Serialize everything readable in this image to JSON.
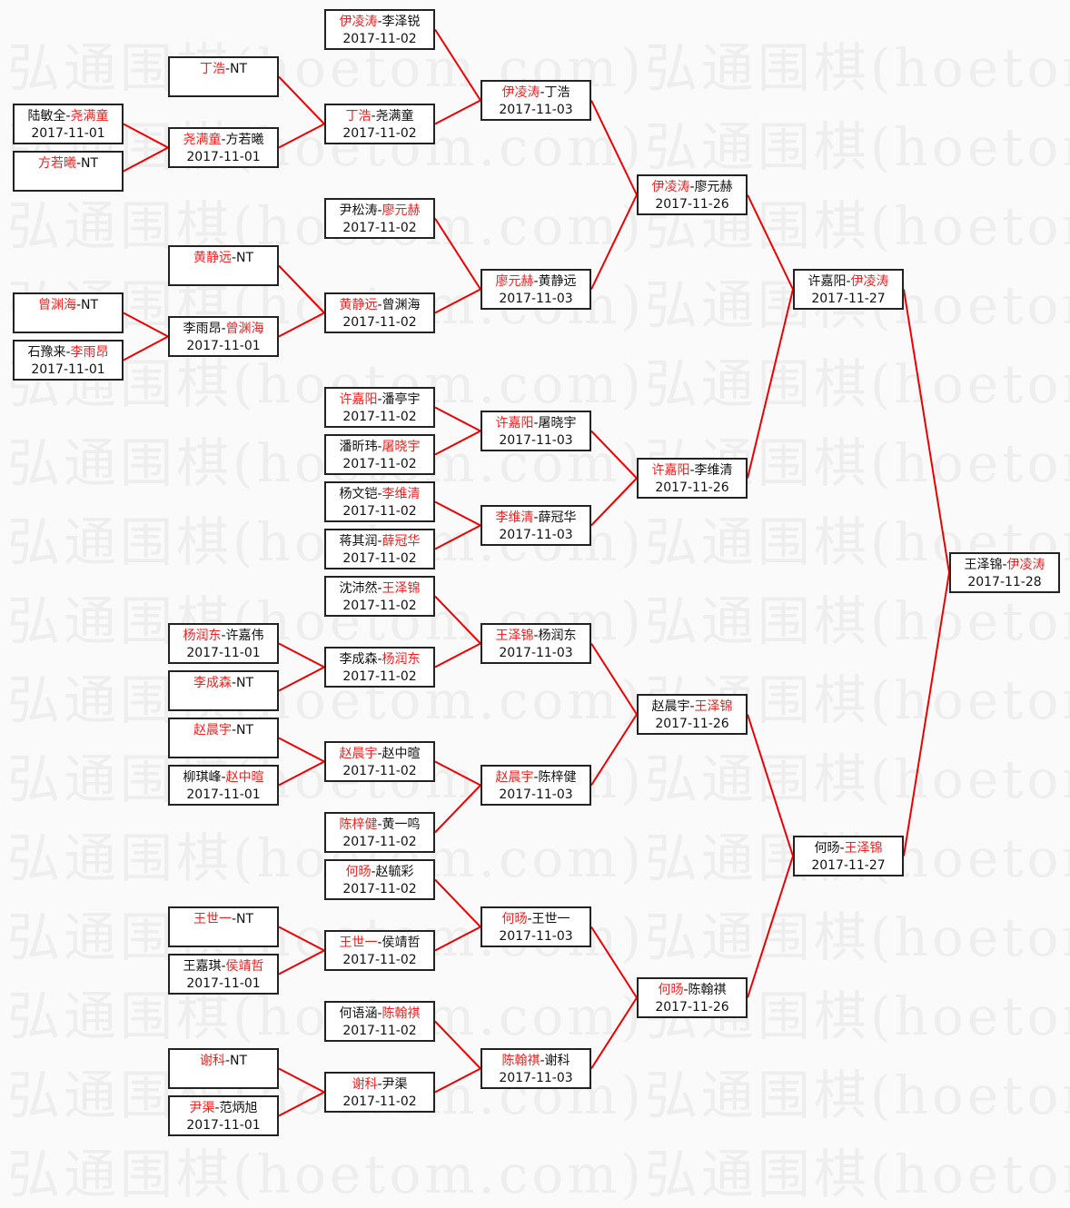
{
  "watermark": "弘通围棋(hoetom.com)",
  "colors": {
    "winner": "#ee2222",
    "line": "#ee0000",
    "border": "#222222"
  },
  "separator": "-",
  "matches": [
    {
      "id": "a1",
      "p1": "陆敏全",
      "p2": "尧满童",
      "winner": 1,
      "date": "2017-11-01"
    },
    {
      "id": "a2",
      "p1": "方若曦",
      "p2": "NT",
      "winner": 0,
      "date": ""
    },
    {
      "id": "a3",
      "p1": "曾渊海",
      "p2": "NT",
      "winner": 0,
      "date": ""
    },
    {
      "id": "a4",
      "p1": "石豫来",
      "p2": "李雨昂",
      "winner": 1,
      "date": "2017-11-01"
    },
    {
      "id": "b1",
      "p1": "丁浩",
      "p2": "NT",
      "winner": 0,
      "date": ""
    },
    {
      "id": "b2",
      "p1": "尧满童",
      "p2": "方若曦",
      "winner": 0,
      "date": "2017-11-01",
      "from": [
        "a1",
        "a2"
      ]
    },
    {
      "id": "b3",
      "p1": "黄静远",
      "p2": "NT",
      "winner": 0,
      "date": ""
    },
    {
      "id": "b4",
      "p1": "李雨昂",
      "p2": "曾渊海",
      "winner": 1,
      "date": "2017-11-01",
      "from": [
        "a3",
        "a4"
      ]
    },
    {
      "id": "b5",
      "p1": "杨润东",
      "p2": "许嘉伟",
      "winner": 0,
      "date": "2017-11-01"
    },
    {
      "id": "b6",
      "p1": "李成森",
      "p2": "NT",
      "winner": 0,
      "date": ""
    },
    {
      "id": "b7",
      "p1": "赵晨宇",
      "p2": "NT",
      "winner": 0,
      "date": ""
    },
    {
      "id": "b8",
      "p1": "柳琪峰",
      "p2": "赵中暄",
      "winner": 1,
      "date": "2017-11-01"
    },
    {
      "id": "b9",
      "p1": "王世一",
      "p2": "NT",
      "winner": 0,
      "date": ""
    },
    {
      "id": "b10",
      "p1": "王嘉琪",
      "p2": "侯靖哲",
      "winner": 1,
      "date": "2017-11-01"
    },
    {
      "id": "b11",
      "p1": "谢科",
      "p2": "NT",
      "winner": 0,
      "date": ""
    },
    {
      "id": "b12",
      "p1": "尹渠",
      "p2": "范炳旭",
      "winner": 0,
      "date": "2017-11-01"
    },
    {
      "id": "c1",
      "p1": "伊凌涛",
      "p2": "李泽锐",
      "winner": 0,
      "date": "2017-11-02"
    },
    {
      "id": "c2",
      "p1": "丁浩",
      "p2": "尧满童",
      "winner": 0,
      "date": "2017-11-02",
      "from": [
        "b1",
        "b2"
      ]
    },
    {
      "id": "c3",
      "p1": "尹松涛",
      "p2": "廖元赫",
      "winner": 1,
      "date": "2017-11-02"
    },
    {
      "id": "c4",
      "p1": "黄静远",
      "p2": "曾渊海",
      "winner": 0,
      "date": "2017-11-02",
      "from": [
        "b3",
        "b4"
      ]
    },
    {
      "id": "c5",
      "p1": "许嘉阳",
      "p2": "潘亭宇",
      "winner": 0,
      "date": "2017-11-02"
    },
    {
      "id": "c6",
      "p1": "潘昕玮",
      "p2": "屠晓宇",
      "winner": 1,
      "date": "2017-11-02"
    },
    {
      "id": "c7",
      "p1": "杨文铠",
      "p2": "李维清",
      "winner": 1,
      "date": "2017-11-02"
    },
    {
      "id": "c8",
      "p1": "蒋其润",
      "p2": "薛冠华",
      "winner": 1,
      "date": "2017-11-02"
    },
    {
      "id": "c9",
      "p1": "沈沛然",
      "p2": "王泽锦",
      "winner": 1,
      "date": "2017-11-02"
    },
    {
      "id": "c10",
      "p1": "李成森",
      "p2": "杨润东",
      "winner": 1,
      "date": "2017-11-02",
      "from": [
        "b5",
        "b6"
      ]
    },
    {
      "id": "c11",
      "p1": "赵晨宇",
      "p2": "赵中暄",
      "winner": 0,
      "date": "2017-11-02",
      "from": [
        "b7",
        "b8"
      ]
    },
    {
      "id": "c12",
      "p1": "陈梓健",
      "p2": "黄一鸣",
      "winner": 0,
      "date": "2017-11-02"
    },
    {
      "id": "c13",
      "p1": "何旸",
      "p2": "赵毓彩",
      "winner": 0,
      "date": "2017-11-02"
    },
    {
      "id": "c14",
      "p1": "王世一",
      "p2": "侯靖哲",
      "winner": 0,
      "date": "2017-11-02",
      "from": [
        "b9",
        "b10"
      ]
    },
    {
      "id": "c15",
      "p1": "何语涵",
      "p2": "陈翰祺",
      "winner": 1,
      "date": "2017-11-02"
    },
    {
      "id": "c16",
      "p1": "谢科",
      "p2": "尹渠",
      "winner": 0,
      "date": "2017-11-02",
      "from": [
        "b11",
        "b12"
      ]
    },
    {
      "id": "d1",
      "p1": "伊凌涛",
      "p2": "丁浩",
      "winner": 0,
      "date": "2017-11-03",
      "from": [
        "c1",
        "c2"
      ]
    },
    {
      "id": "d2",
      "p1": "廖元赫",
      "p2": "黄静远",
      "winner": 0,
      "date": "2017-11-03",
      "from": [
        "c3",
        "c4"
      ]
    },
    {
      "id": "d3",
      "p1": "许嘉阳",
      "p2": "屠晓宇",
      "winner": 0,
      "date": "2017-11-03",
      "from": [
        "c5",
        "c6"
      ]
    },
    {
      "id": "d4",
      "p1": "李维清",
      "p2": "薛冠华",
      "winner": 0,
      "date": "2017-11-03",
      "from": [
        "c7",
        "c8"
      ]
    },
    {
      "id": "d5",
      "p1": "王泽锦",
      "p2": "杨润东",
      "winner": 0,
      "date": "2017-11-03",
      "from": [
        "c9",
        "c10"
      ]
    },
    {
      "id": "d6",
      "p1": "赵晨宇",
      "p2": "陈梓健",
      "winner": 0,
      "date": "2017-11-03",
      "from": [
        "c11",
        "c12"
      ]
    },
    {
      "id": "d7",
      "p1": "何旸",
      "p2": "王世一",
      "winner": 0,
      "date": "2017-11-03",
      "from": [
        "c13",
        "c14"
      ]
    },
    {
      "id": "d8",
      "p1": "陈翰祺",
      "p2": "谢科",
      "winner": 0,
      "date": "2017-11-03",
      "from": [
        "c15",
        "c16"
      ]
    },
    {
      "id": "e1",
      "p1": "伊凌涛",
      "p2": "廖元赫",
      "winner": 0,
      "date": "2017-11-26",
      "from": [
        "d1",
        "d2"
      ]
    },
    {
      "id": "e2",
      "p1": "许嘉阳",
      "p2": "李维清",
      "winner": 0,
      "date": "2017-11-26",
      "from": [
        "d3",
        "d4"
      ]
    },
    {
      "id": "e3",
      "p1": "赵晨宇",
      "p2": "王泽锦",
      "winner": 1,
      "date": "2017-11-26",
      "from": [
        "d5",
        "d6"
      ]
    },
    {
      "id": "e4",
      "p1": "何旸",
      "p2": "陈翰祺",
      "winner": 0,
      "date": "2017-11-26",
      "from": [
        "d7",
        "d8"
      ]
    },
    {
      "id": "f1",
      "p1": "许嘉阳",
      "p2": "伊凌涛",
      "winner": 1,
      "date": "2017-11-27",
      "from": [
        "e1",
        "e2"
      ]
    },
    {
      "id": "f2",
      "p1": "何旸",
      "p2": "王泽锦",
      "winner": 1,
      "date": "2017-11-27",
      "from": [
        "e3",
        "e4"
      ]
    },
    {
      "id": "g1",
      "p1": "王泽锦",
      "p2": "伊凌涛",
      "winner": 1,
      "date": "2017-11-28",
      "from": [
        "f1",
        "f2"
      ]
    }
  ]
}
